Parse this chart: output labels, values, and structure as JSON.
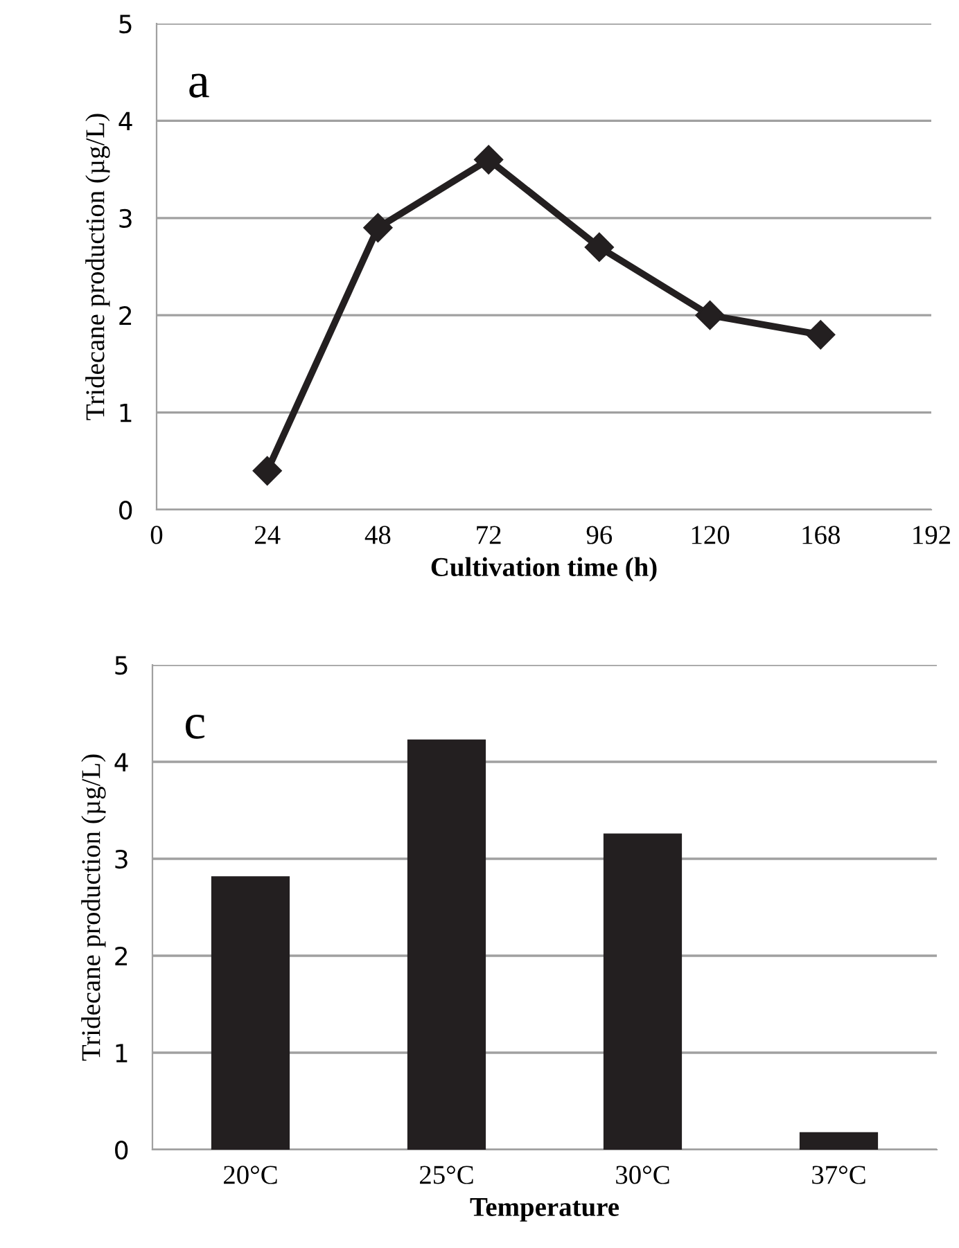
{
  "chart_data": [
    {
      "type": "line",
      "xlabel": "Cultivation time (h)",
      "ylabel": "Tridecane production (µg/L)",
      "annotations": [
        "a"
      ],
      "categories": [
        "0",
        "24",
        "48",
        "72",
        "96",
        "120",
        "168",
        "192"
      ],
      "series": [
        {
          "color": "#231f20",
          "values": [
            null,
            0.4,
            2.9,
            3.6,
            2.7,
            2.0,
            1.8,
            null
          ]
        }
      ],
      "marker": "diamond",
      "ylim": [
        0,
        5
      ],
      "yticks": [
        0,
        1,
        2,
        3,
        4,
        5
      ],
      "grid": "y",
      "legend": false
    },
    {
      "type": "bar",
      "xlabel": "Temperature",
      "ylabel": "Tridecane production (µg/L)",
      "annotations": [
        "c"
      ],
      "categories": [
        "20°C",
        "25°C",
        "30°C",
        "37°C"
      ],
      "series": [
        {
          "color": "#231f20",
          "values": [
            2.82,
            4.23,
            3.26,
            0.18
          ]
        }
      ],
      "ylim": [
        0,
        5
      ],
      "yticks": [
        0,
        1,
        2,
        3,
        4,
        5
      ],
      "grid": "y",
      "legend": false
    }
  ]
}
